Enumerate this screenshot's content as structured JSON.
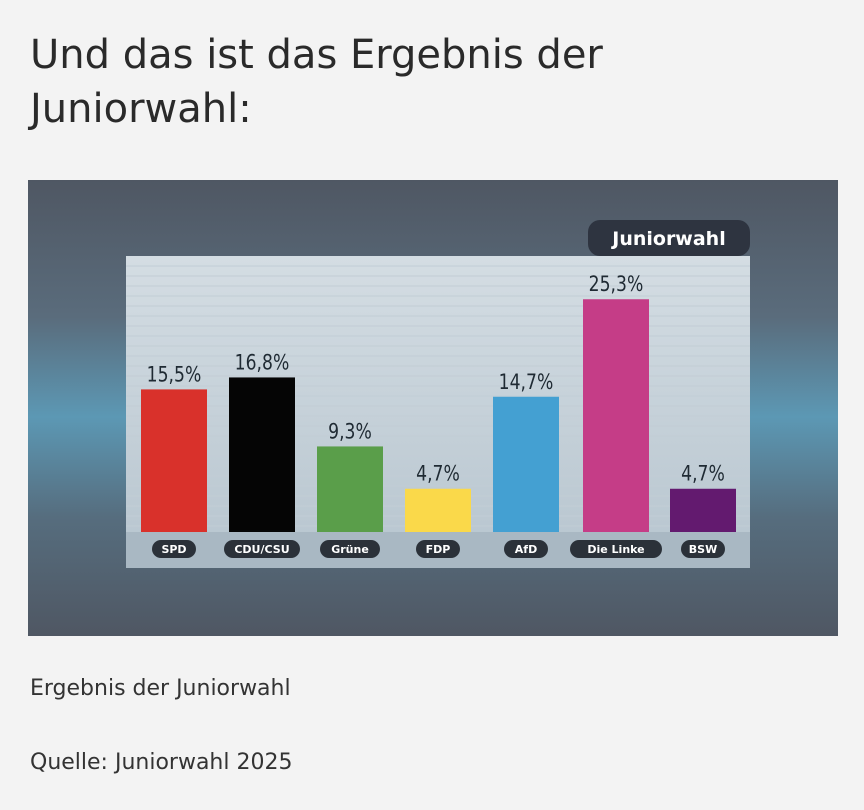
{
  "headline": "Und das ist das Ergebnis der Juniorwahl:",
  "caption": "Ergebnis der Juniorwahl",
  "source": "Quelle: Juniorwahl 2025",
  "chart_data": {
    "type": "bar",
    "title": "Juniorwahl",
    "categories": [
      "SPD",
      "CDU/CSU",
      "Grüne",
      "FDP",
      "AfD",
      "Die Linke",
      "BSW"
    ],
    "values": [
      15.5,
      16.8,
      9.3,
      4.7,
      14.7,
      25.3,
      4.7
    ],
    "value_labels": [
      "15,5%",
      "16,8%",
      "9,3%",
      "4,7%",
      "14,7%",
      "25,3%",
      "4,7%"
    ],
    "colors": [
      "#d9312b",
      "#050505",
      "#5a9e4a",
      "#fad94a",
      "#44a0d2",
      "#c53d87",
      "#631a6f"
    ],
    "ylim": [
      0,
      30
    ],
    "grid": true,
    "legend": "none"
  }
}
